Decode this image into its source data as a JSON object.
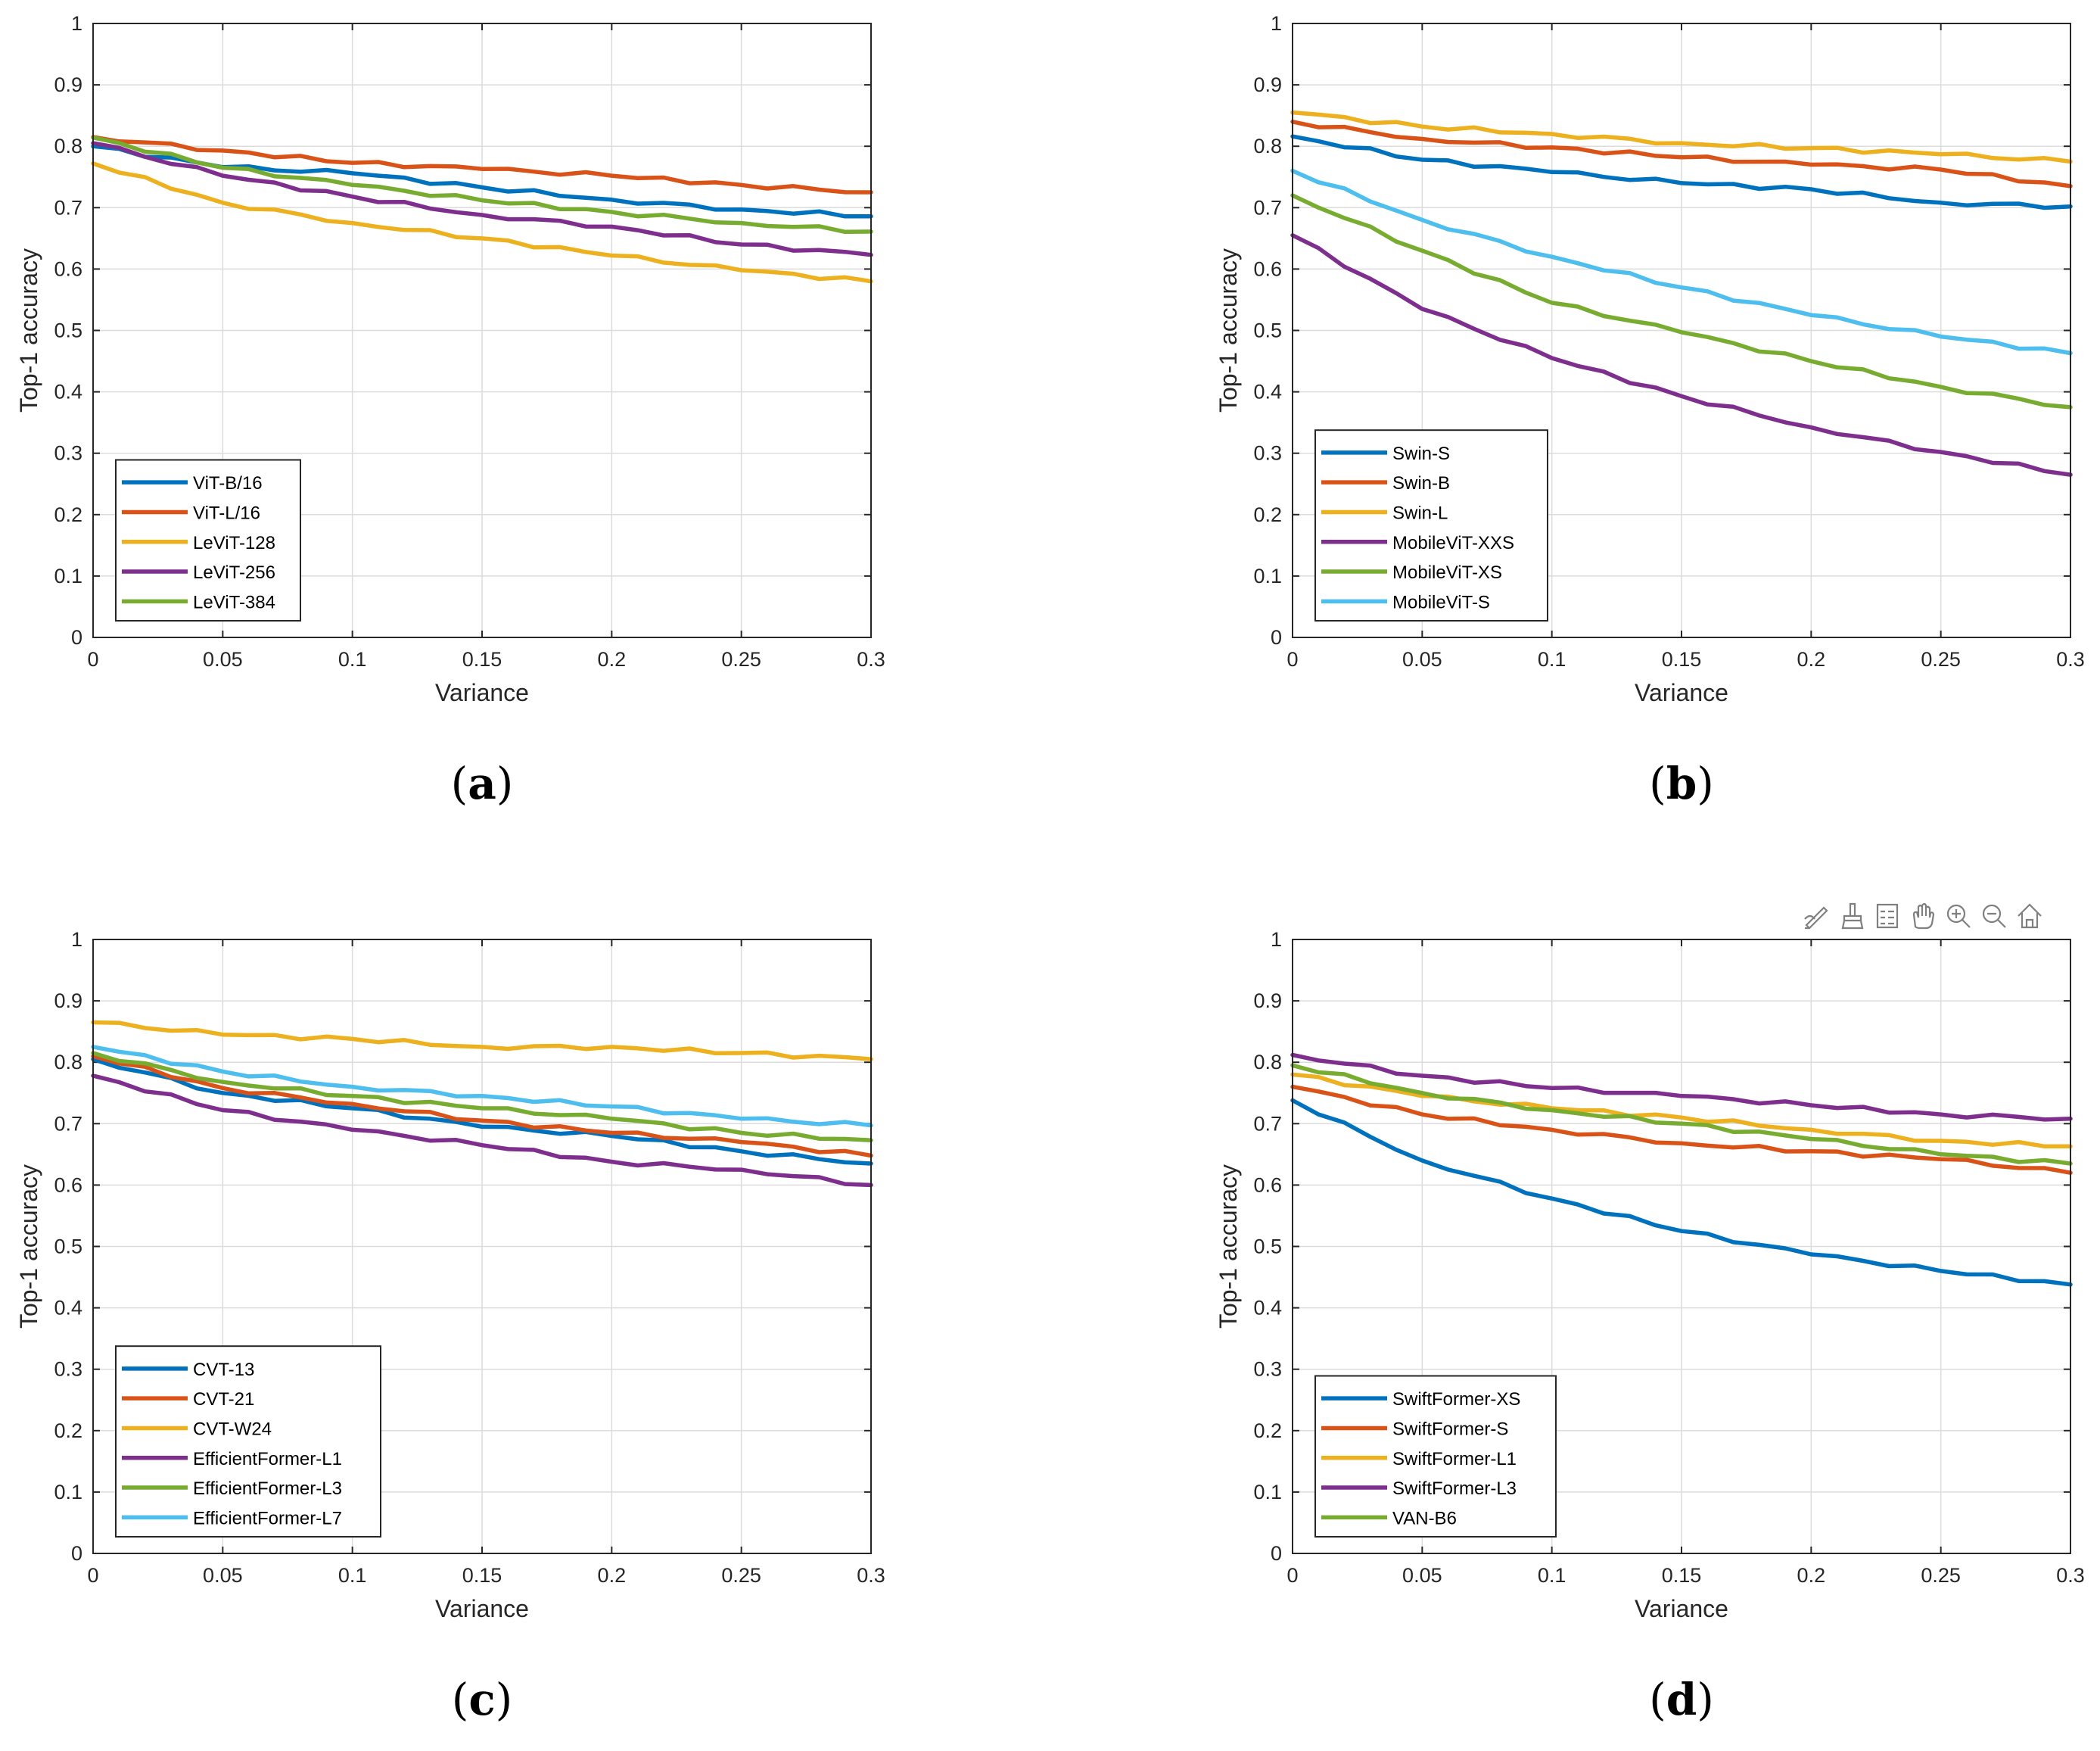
{
  "colors": {
    "c1": "#0072BD",
    "c2": "#D95319",
    "c3": "#EDB120",
    "c4": "#7E2F8E",
    "c5": "#77AC30",
    "c6": "#4DBEEE"
  },
  "toolbar": {
    "icons": [
      "edit-data-tip-icon",
      "brush-icon",
      "legend-icon",
      "pan-hand-icon",
      "zoom-in-icon",
      "zoom-out-icon",
      "home-icon"
    ]
  },
  "chart_data": [
    {
      "type": "line",
      "panel_label": "a",
      "xlabel": "Variance",
      "ylabel": "Top-1 accuracy",
      "xlim": [
        0,
        0.3
      ],
      "ylim": [
        0,
        1
      ],
      "xticks": [
        "0",
        "0.05",
        "0.1",
        "0.15",
        "0.2",
        "0.25",
        "0.3"
      ],
      "yticks": [
        "0",
        "0.1",
        "0.2",
        "0.3",
        "0.4",
        "0.5",
        "0.6",
        "0.7",
        "0.8",
        "0.9",
        "1"
      ],
      "grid": true,
      "legend_position": "bottom-left",
      "x": [
        0,
        0.05,
        0.1,
        0.15,
        0.2,
        0.25,
        0.3
      ],
      "series": [
        {
          "name": "ViT-B/16",
          "color": "#0072BD",
          "values": [
            0.8,
            0.766,
            0.756,
            0.733,
            0.713,
            0.697,
            0.686
          ]
        },
        {
          "name": "ViT-L/16",
          "color": "#D95319",
          "values": [
            0.815,
            0.793,
            0.773,
            0.763,
            0.752,
            0.737,
            0.725
          ]
        },
        {
          "name": "LeViT-128",
          "color": "#EDB120",
          "values": [
            0.772,
            0.708,
            0.675,
            0.65,
            0.622,
            0.598,
            0.58
          ]
        },
        {
          "name": "LeViT-256",
          "color": "#7E2F8E",
          "values": [
            0.805,
            0.752,
            0.718,
            0.688,
            0.669,
            0.64,
            0.623
          ]
        },
        {
          "name": "LeViT-384",
          "color": "#77AC30",
          "values": [
            0.814,
            0.765,
            0.737,
            0.712,
            0.693,
            0.675,
            0.661
          ]
        }
      ]
    },
    {
      "type": "line",
      "panel_label": "b",
      "xlabel": "Variance",
      "ylabel": "Top-1 accuracy",
      "xlim": [
        0,
        0.3
      ],
      "ylim": [
        0,
        1
      ],
      "xticks": [
        "0",
        "0.05",
        "0.1",
        "0.15",
        "0.2",
        "0.25",
        "0.3"
      ],
      "yticks": [
        "0",
        "0.1",
        "0.2",
        "0.3",
        "0.4",
        "0.5",
        "0.6",
        "0.7",
        "0.8",
        "0.9",
        "1"
      ],
      "grid": true,
      "legend_position": "bottom-left",
      "x": [
        0,
        0.05,
        0.1,
        0.15,
        0.2,
        0.25,
        0.3
      ],
      "series": [
        {
          "name": "Swin-S",
          "color": "#0072BD",
          "values": [
            0.816,
            0.778,
            0.758,
            0.74,
            0.73,
            0.708,
            0.702
          ]
        },
        {
          "name": "Swin-B",
          "color": "#D95319",
          "values": [
            0.84,
            0.812,
            0.798,
            0.782,
            0.77,
            0.762,
            0.735
          ]
        },
        {
          "name": "Swin-L",
          "color": "#EDB120",
          "values": [
            0.855,
            0.832,
            0.82,
            0.805,
            0.797,
            0.787,
            0.775
          ]
        },
        {
          "name": "MobileViT-XXS",
          "color": "#7E2F8E",
          "values": [
            0.655,
            0.535,
            0.455,
            0.393,
            0.342,
            0.302,
            0.265
          ]
        },
        {
          "name": "MobileViT-XS",
          "color": "#77AC30",
          "values": [
            0.72,
            0.63,
            0.545,
            0.497,
            0.45,
            0.408,
            0.375
          ]
        },
        {
          "name": "MobileViT-S",
          "color": "#4DBEEE",
          "values": [
            0.76,
            0.68,
            0.62,
            0.57,
            0.525,
            0.49,
            0.463
          ]
        }
      ]
    },
    {
      "type": "line",
      "panel_label": "c",
      "xlabel": "Variance",
      "ylabel": "Top-1 accuracy",
      "xlim": [
        0,
        0.3
      ],
      "ylim": [
        0,
        1
      ],
      "xticks": [
        "0",
        "0.05",
        "0.1",
        "0.15",
        "0.2",
        "0.25",
        "0.3"
      ],
      "yticks": [
        "0",
        "0.1",
        "0.2",
        "0.3",
        "0.4",
        "0.5",
        "0.6",
        "0.7",
        "0.8",
        "0.9",
        "1"
      ],
      "grid": true,
      "legend_position": "bottom-left",
      "x": [
        0,
        0.05,
        0.1,
        0.15,
        0.2,
        0.25,
        0.3
      ],
      "series": [
        {
          "name": "CVT-13",
          "color": "#0072BD",
          "values": [
            0.805,
            0.75,
            0.725,
            0.695,
            0.68,
            0.655,
            0.635
          ]
        },
        {
          "name": "CVT-21",
          "color": "#D95319",
          "values": [
            0.81,
            0.758,
            0.732,
            0.705,
            0.685,
            0.67,
            0.648
          ]
        },
        {
          "name": "CVT-W24",
          "color": "#EDB120",
          "values": [
            0.865,
            0.845,
            0.838,
            0.825,
            0.825,
            0.815,
            0.805
          ]
        },
        {
          "name": "EfficientFormer-L1",
          "color": "#7E2F8E",
          "values": [
            0.778,
            0.722,
            0.69,
            0.665,
            0.638,
            0.625,
            0.6
          ]
        },
        {
          "name": "EfficientFormer-L3",
          "color": "#77AC30",
          "values": [
            0.815,
            0.768,
            0.745,
            0.725,
            0.708,
            0.685,
            0.673
          ]
        },
        {
          "name": "EfficientFormer-L7",
          "color": "#4DBEEE",
          "values": [
            0.825,
            0.785,
            0.76,
            0.745,
            0.728,
            0.708,
            0.697
          ]
        }
      ]
    },
    {
      "type": "line",
      "panel_label": "d",
      "xlabel": "Variance",
      "ylabel": "Top-1 accuracy",
      "xlim": [
        0,
        0.3
      ],
      "ylim": [
        0,
        1
      ],
      "xticks": [
        "0",
        "0.05",
        "0.1",
        "0.15",
        "0.2",
        "0.25",
        "0.3"
      ],
      "yticks": [
        "0",
        "0.1",
        "0.2",
        "0.3",
        "0.4",
        "0.5",
        "0.6",
        "0.7",
        "0.8",
        "0.9",
        "1"
      ],
      "grid": true,
      "legend_position": "bottom-left",
      "x": [
        0,
        0.05,
        0.1,
        0.15,
        0.2,
        0.25,
        0.3
      ],
      "series": [
        {
          "name": "SwiftFormer-XS",
          "color": "#0072BD",
          "values": [
            0.738,
            0.64,
            0.578,
            0.525,
            0.487,
            0.46,
            0.438
          ]
        },
        {
          "name": "SwiftFormer-S",
          "color": "#D95319",
          "values": [
            0.76,
            0.715,
            0.69,
            0.668,
            0.655,
            0.642,
            0.62
          ]
        },
        {
          "name": "SwiftFormer-L1",
          "color": "#EDB120",
          "values": [
            0.78,
            0.745,
            0.725,
            0.71,
            0.69,
            0.672,
            0.663
          ]
        },
        {
          "name": "SwiftFormer-L3",
          "color": "#7E2F8E",
          "values": [
            0.812,
            0.778,
            0.758,
            0.745,
            0.73,
            0.715,
            0.708
          ]
        },
        {
          "name": "VAN-B6",
          "color": "#77AC30",
          "values": [
            0.795,
            0.75,
            0.722,
            0.7,
            0.675,
            0.65,
            0.635
          ]
        }
      ]
    }
  ]
}
